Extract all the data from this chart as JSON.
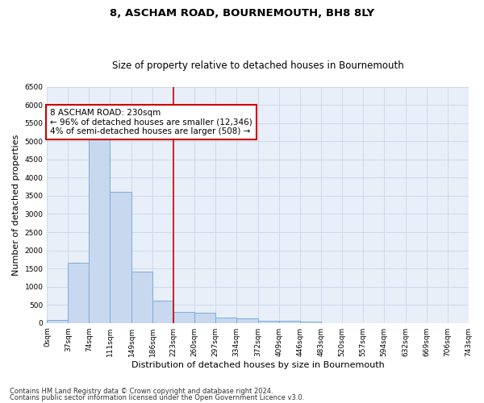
{
  "title": "8, ASCHAM ROAD, BOURNEMOUTH, BH8 8LY",
  "subtitle": "Size of property relative to detached houses in Bournemouth",
  "xlabel": "Distribution of detached houses by size in Bournemouth",
  "ylabel": "Number of detached properties",
  "bin_edges": [
    0,
    37,
    74,
    111,
    149,
    186,
    223,
    260,
    297,
    334,
    372,
    409,
    446,
    483,
    520,
    557,
    594,
    632,
    669,
    706,
    743
  ],
  "bar_heights": [
    75,
    1650,
    5050,
    3600,
    1420,
    620,
    300,
    290,
    155,
    120,
    65,
    55,
    45,
    0,
    0,
    0,
    0,
    0,
    0,
    0
  ],
  "bar_color": "#c8d8ee",
  "bar_edgecolor": "#7aadde",
  "vline_x": 223,
  "vline_color": "#cc0000",
  "annotation_line1": "8 ASCHAM ROAD: 230sqm",
  "annotation_line2": "← 96% of detached houses are smaller (12,346)",
  "annotation_line3": "4% of semi-detached houses are larger (508) →",
  "annotation_box_color": "#cc0000",
  "annotation_bg": "#ffffff",
  "ylim": [
    0,
    6500
  ],
  "tick_labels": [
    "0sqm",
    "37sqm",
    "74sqm",
    "111sqm",
    "149sqm",
    "186sqm",
    "223sqm",
    "260sqm",
    "297sqm",
    "334sqm",
    "372sqm",
    "409sqm",
    "446sqm",
    "483sqm",
    "520sqm",
    "557sqm",
    "594sqm",
    "632sqm",
    "669sqm",
    "706sqm",
    "743sqm"
  ],
  "footer1": "Contains HM Land Registry data © Crown copyright and database right 2024.",
  "footer2": "Contains public sector information licensed under the Open Government Licence v3.0.",
  "title_fontsize": 9.5,
  "subtitle_fontsize": 8.5,
  "axis_label_fontsize": 8,
  "tick_fontsize": 6.5,
  "annotation_fontsize": 7.5,
  "footer_fontsize": 6,
  "grid_color": "#d0d8ee",
  "bg_color": "#e8eff8"
}
